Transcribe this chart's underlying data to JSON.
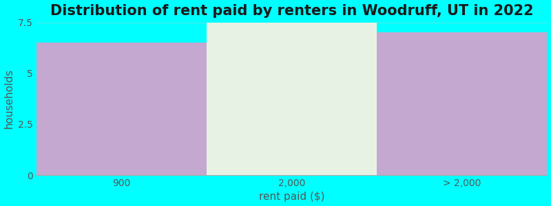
{
  "title": "Distribution of rent paid by renters in Woodruff, UT in 2022",
  "categories": [
    "900",
    "2,000",
    "> 2,000"
  ],
  "values": [
    6.5,
    7.5,
    7.0
  ],
  "bar_colors": [
    "#c4a8d0",
    "#e8f2e4",
    "#c4a8d0"
  ],
  "xlabel": "rent paid ($)",
  "ylabel": "households",
  "ylim": [
    0,
    7.5
  ],
  "yticks": [
    0,
    2.5,
    5.0,
    7.5
  ],
  "background_color": "#00FFFF",
  "axes_bg_color": "#00FFFF",
  "title_fontsize": 15,
  "label_fontsize": 11,
  "tick_fontsize": 10,
  "bar_width": 1.0,
  "title_color": "#1a1a1a",
  "tick_color": "#555555",
  "label_color": "#555555"
}
